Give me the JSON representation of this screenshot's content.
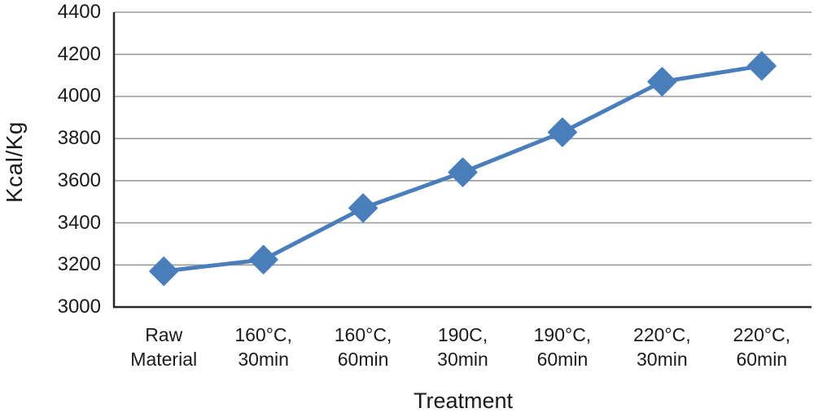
{
  "chart_data": {
    "type": "line",
    "title": "",
    "xlabel": "Treatment",
    "ylabel": "Kcal/Kg",
    "categories": [
      "Raw Material",
      "160°C, 30min",
      "160°C, 60min",
      "190C, 30min",
      "190°C, 60min",
      "220°C, 30min",
      "220°C, 60min"
    ],
    "category_label_lines": [
      [
        "Raw",
        "Material"
      ],
      [
        "160°C,",
        "30min"
      ],
      [
        "160°C,",
        "60min"
      ],
      [
        "190C,",
        "30min"
      ],
      [
        "190°C,",
        "60min"
      ],
      [
        "220°C,",
        "30min"
      ],
      [
        "220°C,",
        "60min"
      ]
    ],
    "series": [
      {
        "name": "Kcal/Kg",
        "values": [
          3170,
          3225,
          3470,
          3640,
          3830,
          4070,
          4145
        ]
      }
    ],
    "ylim": [
      3000,
      4400
    ],
    "ytick_step": 200,
    "ytick_labels": [
      "3000",
      "3200",
      "3400",
      "3600",
      "3800",
      "4000",
      "4200",
      "4400"
    ],
    "grid": true,
    "legend": "none",
    "marker": "diamond",
    "colors": {
      "line": "#4a7ebb",
      "marker": "#4a7ebb",
      "gridline": "#9b9b9b",
      "axis": "#262626",
      "text": "#1a1a1a",
      "background": "#ffffff"
    }
  }
}
